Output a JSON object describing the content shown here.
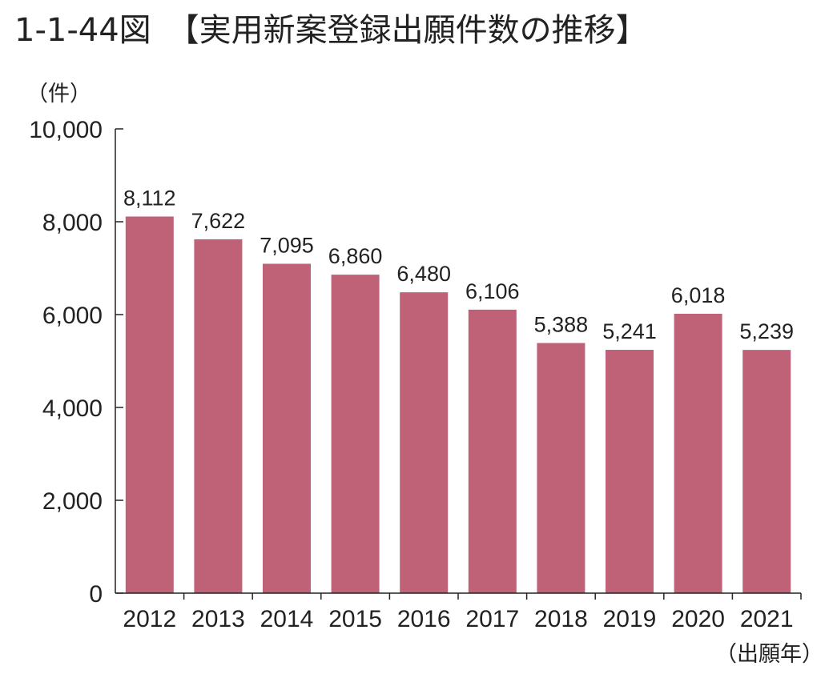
{
  "title": "1-1-44図　【実用新案登録出願件数の推移】",
  "y_unit_label": "（件）",
  "x_unit_label": "（出願年）",
  "colors": {
    "bar": "#c06277",
    "axis": "#222222",
    "text": "#222222"
  },
  "chart_data": {
    "type": "bar",
    "categories": [
      "2012",
      "2013",
      "2014",
      "2015",
      "2016",
      "2017",
      "2018",
      "2019",
      "2020",
      "2021"
    ],
    "values": [
      8112,
      7622,
      7095,
      6860,
      6480,
      6106,
      5388,
      5241,
      6018,
      5239
    ],
    "value_labels": [
      "8,112",
      "7,622",
      "7,095",
      "6,860",
      "6,480",
      "6,106",
      "5,388",
      "5,241",
      "6,018",
      "5,239"
    ],
    "title": "1-1-44図　【実用新案登録出願件数の推移】",
    "xlabel": "（出願年）",
    "ylabel": "（件）",
    "ylim": [
      0,
      10000
    ],
    "yticks": [
      0,
      2000,
      4000,
      6000,
      8000,
      10000
    ],
    "ytick_labels": [
      "0",
      "2,000",
      "4,000",
      "6,000",
      "8,000",
      "10,000"
    ],
    "grid": false,
    "legend": "none"
  }
}
